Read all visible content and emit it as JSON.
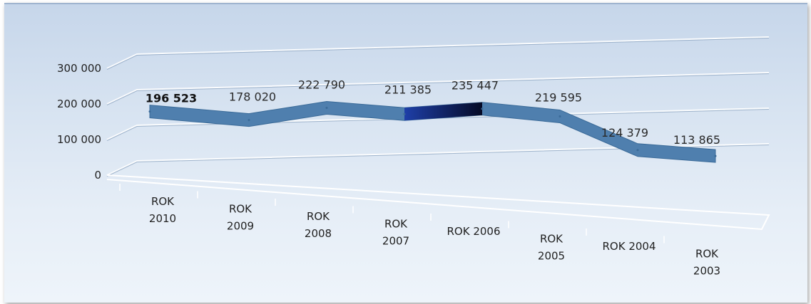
{
  "chart_data": {
    "type": "line",
    "style": "3d-ribbon",
    "title": "",
    "xlabel": "",
    "ylabel": "",
    "ylim": [
      0,
      300000
    ],
    "yticks": [
      0,
      100000,
      200000,
      300000
    ],
    "ytick_labels": [
      "0",
      "100 000",
      "200 000",
      "300 000"
    ],
    "grid": true,
    "legend": "none",
    "categories": [
      [
        "ROK",
        "2010"
      ],
      [
        "ROK",
        "2009"
      ],
      [
        "ROK",
        "2008"
      ],
      [
        "ROK",
        "2007"
      ],
      [
        "ROK 2006"
      ],
      [
        "ROK",
        "2005"
      ],
      [
        "ROK 2004"
      ],
      [
        "ROK",
        "2003"
      ]
    ],
    "series": [
      {
        "values": [
          196523,
          178020,
          222790,
          211385,
          235447,
          219595,
          124379,
          113865
        ],
        "data_labels": [
          "196 523",
          "178 020",
          "222 790",
          "211 385",
          "235 447",
          "219 595",
          "124 379",
          "113 865"
        ],
        "color": "#4f7fae"
      }
    ]
  }
}
